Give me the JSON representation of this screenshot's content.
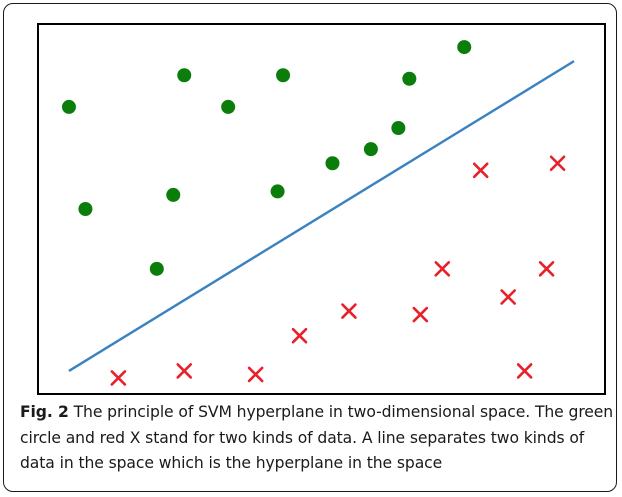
{
  "figure": {
    "label": "Fig. 2",
    "caption": "The principle of SVM hyperplane in two-dimensional space. The green circle and red X stand for two kinds of data. A line separates two kinds of data in the space which is the hyperplane in the space"
  },
  "colors": {
    "circle_class": "#0a7d0a",
    "x_class": "#e8202a",
    "hyperplane": "#3a82c0",
    "frame": "#000000"
  },
  "chart_data": {
    "type": "scatter",
    "xlim": [
      0,
      100
    ],
    "ylim": [
      0,
      100
    ],
    "grid": false,
    "axes_ticks": false,
    "series": [
      {
        "marker": "circle",
        "color": "#0a7d0a",
        "points": [
          [
            4,
            79
          ],
          [
            7,
            50
          ],
          [
            20,
            33
          ],
          [
            23,
            54
          ],
          [
            25,
            88
          ],
          [
            33,
            79
          ],
          [
            42,
            55
          ],
          [
            43,
            88
          ],
          [
            52,
            63
          ],
          [
            59,
            67
          ],
          [
            64,
            73
          ],
          [
            66,
            87
          ],
          [
            76,
            96
          ]
        ]
      },
      {
        "marker": "x",
        "color": "#e8202a",
        "points": [
          [
            13,
            2
          ],
          [
            25,
            4
          ],
          [
            38,
            3
          ],
          [
            46,
            14
          ],
          [
            55,
            21
          ],
          [
            68,
            20
          ],
          [
            72,
            33
          ],
          [
            79,
            61
          ],
          [
            84,
            25
          ],
          [
            87,
            4
          ],
          [
            91,
            33
          ],
          [
            93,
            63
          ]
        ]
      }
    ],
    "lines": [
      {
        "color": "#3a82c0",
        "from": [
          4,
          4
        ],
        "to": [
          96,
          92
        ]
      }
    ]
  }
}
